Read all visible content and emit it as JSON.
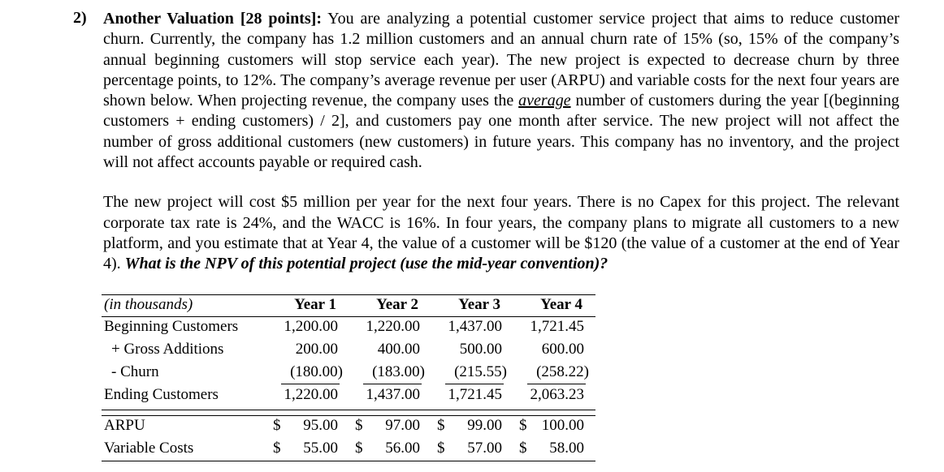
{
  "question": {
    "number": "2)",
    "title": "Another Valuation [28 points]:",
    "paragraphs": [
      [
        "You are analyzing a potential customer service project that aims to reduce customer churn.  Currently, the company has 1.2 million customers and an annual churn rate of 15% (so, 15% of the company’s annual beginning customers will stop service each year). The new project is expected to decrease churn by three percentage points, to 12%. The company’s average revenue per user (ARPU) and variable costs for the next four years are shown below.  When projecting revenue, the company uses the ",
        "average",
        " number of customers during the year [(beginning customers + ending customers) / 2], and customers pay one month after service. The new project will not affect the number of gross additional customers (new customers) in future years. This company has no inventory, and the project will not affect accounts payable or required cash."
      ],
      [
        "The new project will cost $5 million per year for the next four years.  There is no Capex for this project.  The relevant corporate tax rate is 24%, and the WACC is 16%.  In four years, the company plans to migrate all customers to a new platform, and you estimate that at Year 4, the value of a customer will be $120 (the value of a customer at the end of Year 4).  ",
        "What is the NPV of this potential project (use the mid-year convention)?"
      ]
    ]
  },
  "table": {
    "header": [
      "(in thousands)",
      "Year 1",
      "Year 2",
      "Year 3",
      "Year 4"
    ],
    "rows": [
      [
        "Beginning Customers",
        "1,200.00",
        "1,220.00",
        "1,437.00",
        "1,721.45"
      ],
      [
        "+ Gross Additions",
        "200.00",
        "400.00",
        "500.00",
        "600.00"
      ],
      [
        "- Churn",
        "(180.00)",
        "(183.00)",
        "(215.55)",
        "(258.22)"
      ],
      [
        "Ending Customers",
        "1,220.00",
        "1,437.00",
        "1,721.45",
        "2,063.23"
      ],
      [
        "ARPU",
        {
          "symbol": "$",
          "amount": "95.00"
        },
        {
          "symbol": "$",
          "amount": "97.00"
        },
        {
          "symbol": "$",
          "amount": "99.00"
        },
        {
          "symbol": "$",
          "amount": "100.00"
        }
      ],
      [
        "Variable Costs",
        {
          "symbol": "$",
          "amount": "55.00"
        },
        {
          "symbol": "$",
          "amount": "56.00"
        },
        {
          "symbol": "$",
          "amount": "57.00"
        },
        {
          "symbol": "$",
          "amount": "58.00"
        }
      ]
    ]
  }
}
